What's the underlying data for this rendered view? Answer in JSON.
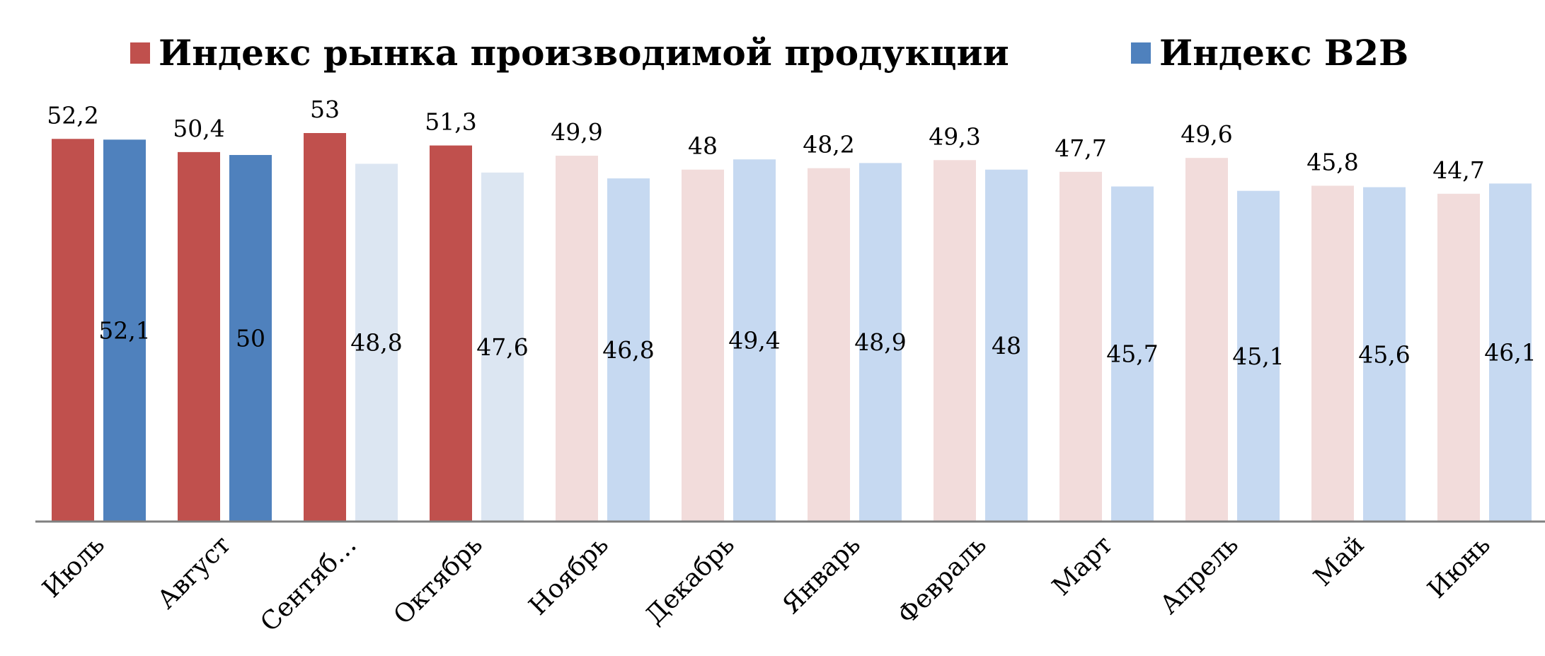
{
  "chart_data": {
    "type": "bar",
    "categories": [
      "Июль",
      "Август",
      "Сентяб…",
      "Октябрь",
      "Ноябрь",
      "Декабрь",
      "Январь",
      "Февраль",
      "Март",
      "Апрель",
      "Май",
      "Июнь"
    ],
    "series": [
      {
        "name": "Индекс рынка производимой продукции",
        "color": "#C0504D",
        "faded_color": "#F2DCDB",
        "values": [
          52.2,
          50.4,
          53,
          51.3,
          49.9,
          48,
          48.2,
          49.3,
          47.7,
          49.6,
          45.8,
          44.7
        ],
        "labels": [
          "52,2",
          "50,4",
          "53",
          "51,3",
          "49,9",
          "48",
          "48,2",
          "49,3",
          "47,7",
          "49,6",
          "45,8",
          "44,7"
        ],
        "faded": [
          false,
          false,
          false,
          false,
          true,
          true,
          true,
          true,
          true,
          true,
          true,
          true
        ]
      },
      {
        "name": "Индекс B2B",
        "color": "#4F81BD",
        "faded_color": "#C6D9F1",
        "values": [
          52.1,
          50,
          48.8,
          47.6,
          46.8,
          49.4,
          48.9,
          48,
          45.7,
          45.1,
          45.6,
          46.1
        ],
        "labels": [
          "52,1",
          "50",
          "48,8",
          "47,6",
          "46,8",
          "49,4",
          "48,9",
          "48",
          "45,7",
          "45,1",
          "45,6",
          "46,1"
        ],
        "faded": [
          false,
          false,
          true,
          true,
          true,
          true,
          true,
          true,
          true,
          true,
          true,
          true
        ],
        "faded_colors": [
          "#4F81BD",
          "#4F81BD",
          "#DCE6F2",
          "#DCE6F2",
          "#C6D9F1",
          "#C6D9F1",
          "#C6D9F1",
          "#C6D9F1",
          "#C6D9F1",
          "#C6D9F1",
          "#C6D9F1",
          "#C6D9F1"
        ]
      }
    ],
    "title": "",
    "xlabel": "",
    "ylabel": "",
    "ylim": [
      0,
      53
    ],
    "grid": false,
    "legend": "top"
  },
  "axis_color": "#808080"
}
